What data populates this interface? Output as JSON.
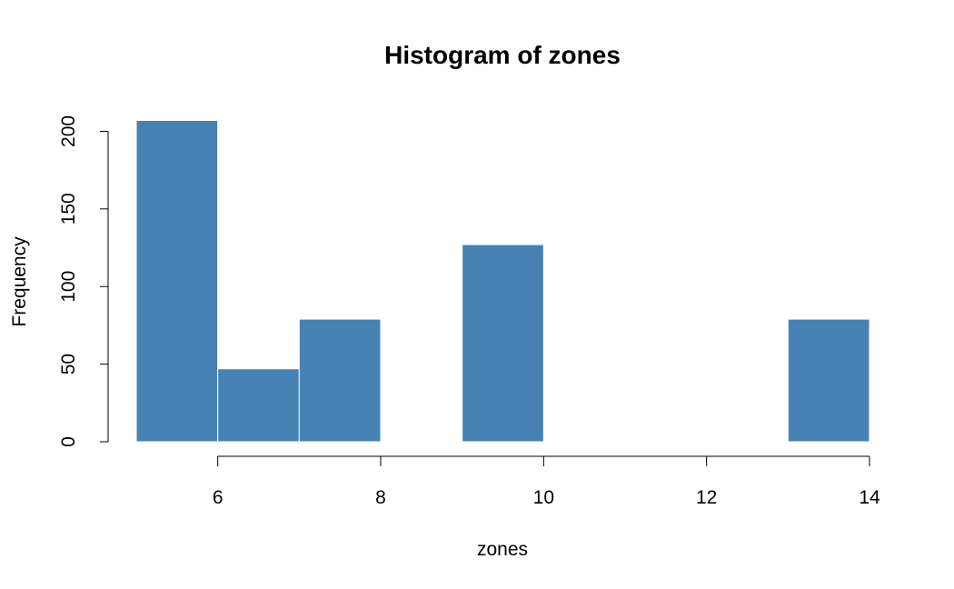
{
  "chart_data": {
    "type": "bar",
    "title": "Histogram of zones",
    "xlabel": "zones",
    "ylabel": "Frequency",
    "bins": [
      {
        "x0": 5,
        "x1": 6,
        "count": 207
      },
      {
        "x0": 6,
        "x1": 7,
        "count": 47
      },
      {
        "x0": 7,
        "x1": 8,
        "count": 79
      },
      {
        "x0": 8,
        "x1": 9,
        "count": 0
      },
      {
        "x0": 9,
        "x1": 10,
        "count": 127
      },
      {
        "x0": 10,
        "x1": 11,
        "count": 0
      },
      {
        "x0": 11,
        "x1": 12,
        "count": 0
      },
      {
        "x0": 12,
        "x1": 13,
        "count": 0
      },
      {
        "x0": 13,
        "x1": 14,
        "count": 79
      }
    ],
    "xlim": [
      5,
      14
    ],
    "ylim": [
      0,
      207
    ],
    "xticks": [
      6,
      8,
      10,
      12,
      14
    ],
    "yticks": [
      0,
      50,
      100,
      150,
      200
    ],
    "xtick_labels": [
      "6",
      "8",
      "10",
      "12",
      "14"
    ],
    "ytick_labels": [
      "0",
      "50",
      "100",
      "150",
      "200"
    ],
    "grid": false,
    "legend": "none",
    "colors": {
      "bar_fill": "#4682B4",
      "bar_border": "#ffffff",
      "axis": "#000000"
    }
  }
}
